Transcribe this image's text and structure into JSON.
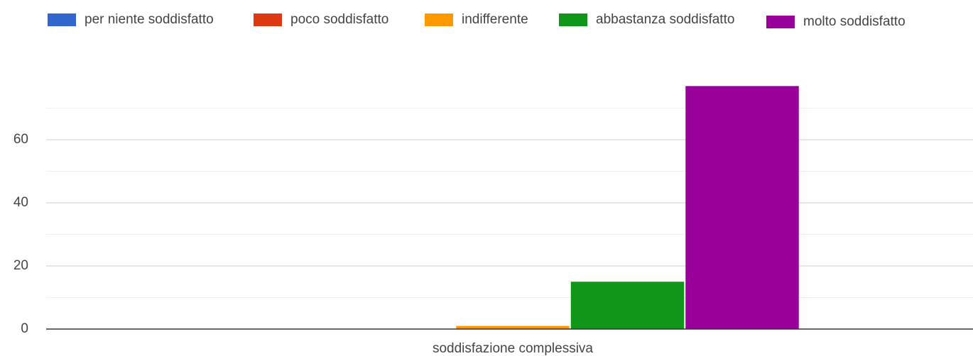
{
  "chart_data": {
    "type": "bar",
    "categories": [
      "soddisfazione complessiva"
    ],
    "series": [
      {
        "name": "per niente soddisfatto",
        "color": "#3366cc",
        "values": [
          0
        ]
      },
      {
        "name": "poco soddisfatto",
        "color": "#dc3912",
        "values": [
          0
        ]
      },
      {
        "name": "indifferente",
        "color": "#ff9900",
        "values": [
          1
        ]
      },
      {
        "name": "abbastanza soddisfatto",
        "color": "#109618",
        "values": [
          15
        ]
      },
      {
        "name": "molto soddisfatto",
        "color": "#990099",
        "values": [
          77
        ]
      }
    ],
    "ylim": [
      0,
      80
    ],
    "yticks": [
      0,
      20,
      40,
      60
    ],
    "minor_yticks": [
      10,
      30,
      50,
      70
    ],
    "grid": true,
    "legend": "top"
  }
}
